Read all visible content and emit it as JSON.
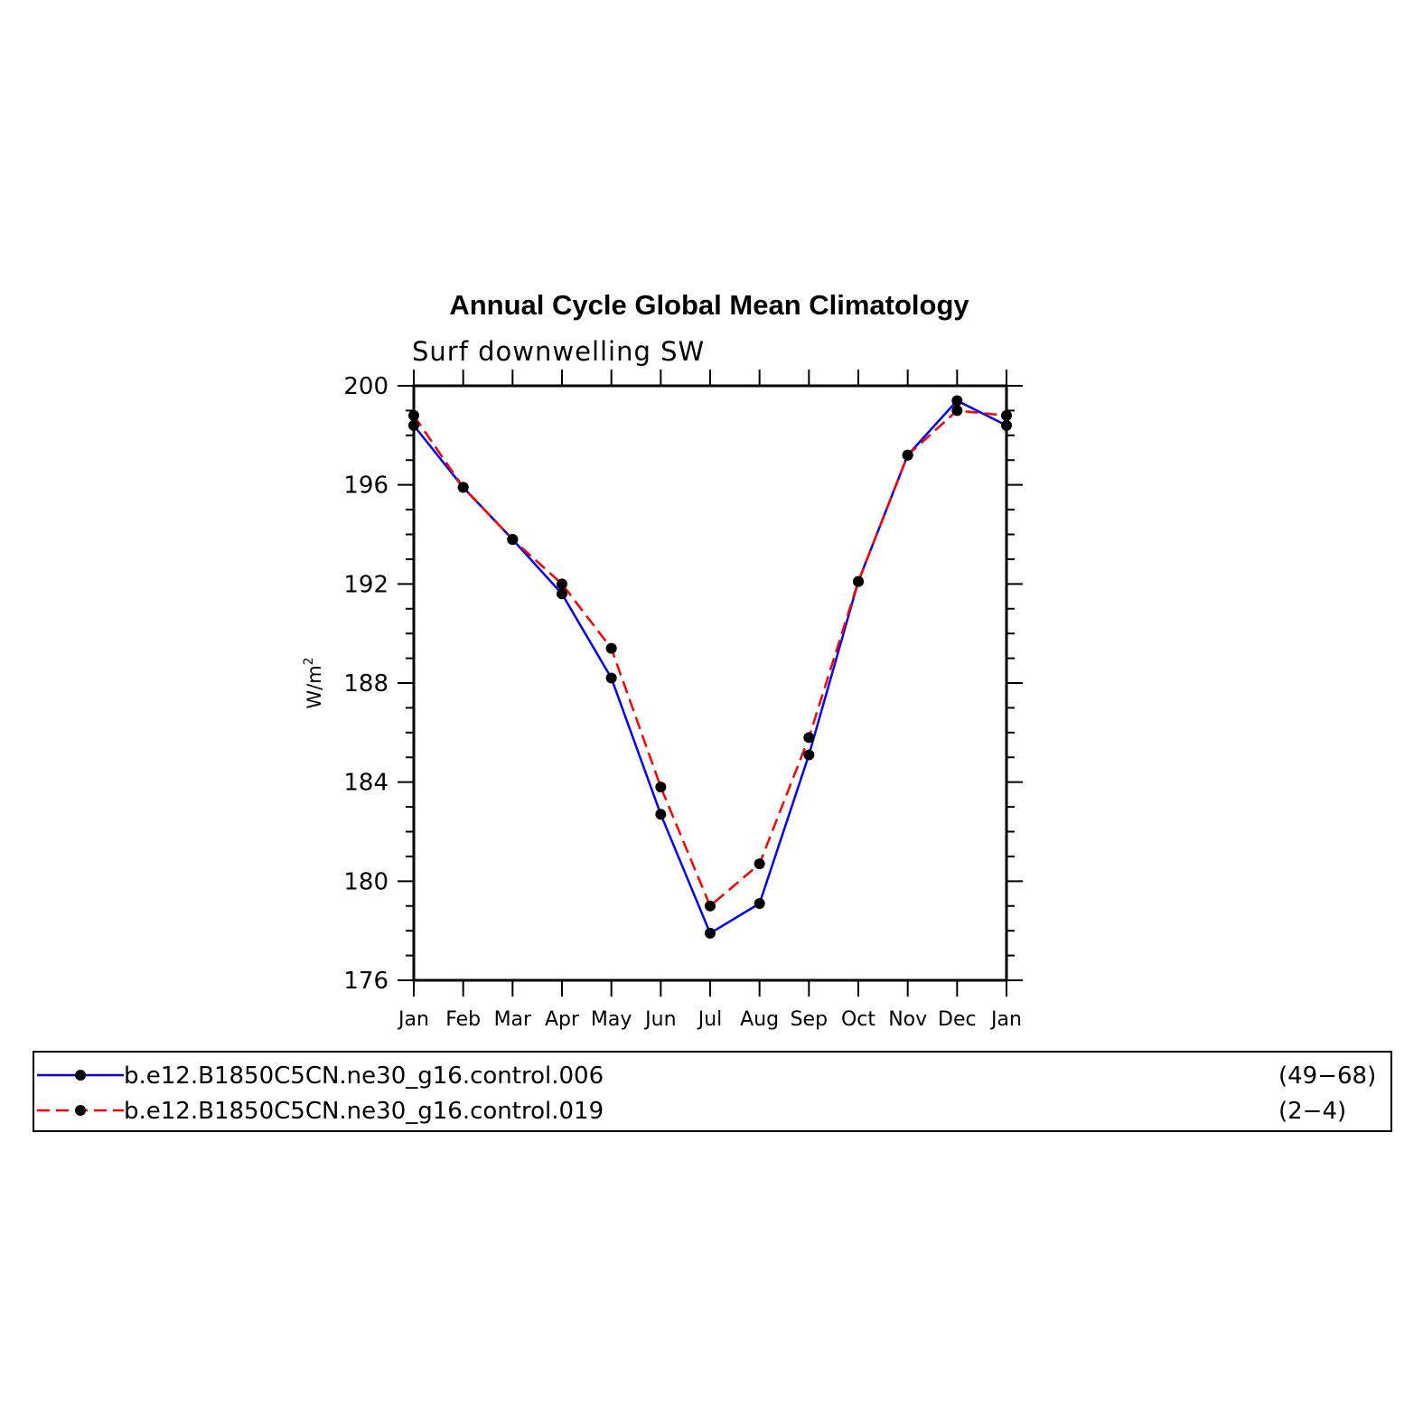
{
  "chart_data": {
    "type": "line",
    "title": "Annual Cycle Global Mean Climatology",
    "subtitle": "Surf downwelling SW",
    "ylabel": "W/m",
    "ylabel_superscript": "2",
    "ylim": [
      176,
      200
    ],
    "yticks": [
      "176",
      "180",
      "184",
      "188",
      "192",
      "196",
      "200"
    ],
    "categories": [
      "Jan",
      "Feb",
      "Mar",
      "Apr",
      "May",
      "Jun",
      "Jul",
      "Aug",
      "Sep",
      "Oct",
      "Nov",
      "Dec",
      "Jan"
    ],
    "grid": false,
    "legend_position": "bottom",
    "series": [
      {
        "name": "b.e12.B1850C5CN.ne30_g16.control.006",
        "years": "(49−68)",
        "color": "#0000ff",
        "dash": "solid",
        "values": [
          198.4,
          195.9,
          193.8,
          191.6,
          188.2,
          182.7,
          177.9,
          179.1,
          185.1,
          192.1,
          197.2,
          199.4,
          198.4
        ]
      },
      {
        "name": "b.e12.B1850C5CN.ne30_g16.control.019",
        "years": "(2−4)",
        "color": "#ff0000",
        "dash": "dashed",
        "values": [
          198.8,
          195.9,
          193.8,
          192.0,
          189.4,
          183.8,
          179.0,
          180.7,
          185.8,
          192.1,
          197.2,
          199.0,
          198.8
        ]
      }
    ]
  }
}
